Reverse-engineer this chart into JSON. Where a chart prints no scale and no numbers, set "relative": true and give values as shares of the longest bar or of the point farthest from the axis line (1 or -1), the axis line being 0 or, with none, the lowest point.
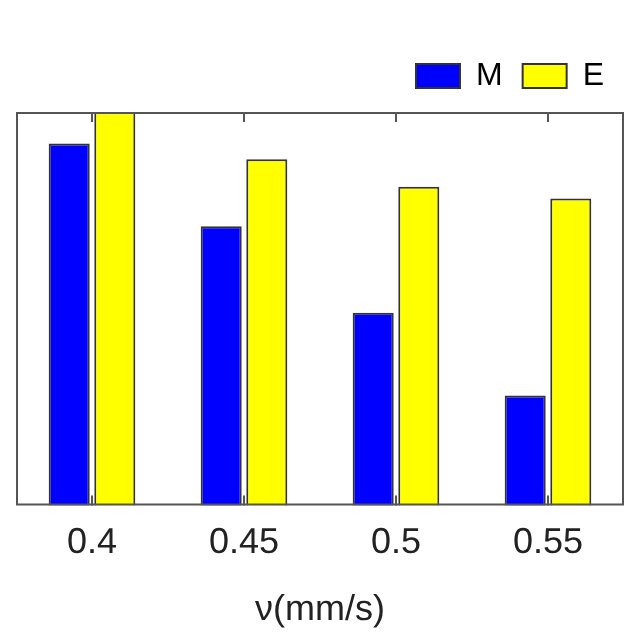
{
  "chart_data": {
    "type": "bar",
    "xlabel": "ν(mm/s)",
    "relative": true,
    "categories": [
      "0.4",
      "0.45",
      "0.5",
      "0.55"
    ],
    "series": [
      {
        "name": "M",
        "color": "#0000ff",
        "values": [
          0.92,
          0.71,
          0.49,
          0.28
        ]
      },
      {
        "name": "E",
        "color": "#ffff00",
        "values": [
          1,
          0.88,
          0.81,
          0.78
        ]
      }
    ],
    "legend": "top right",
    "grid": false
  }
}
